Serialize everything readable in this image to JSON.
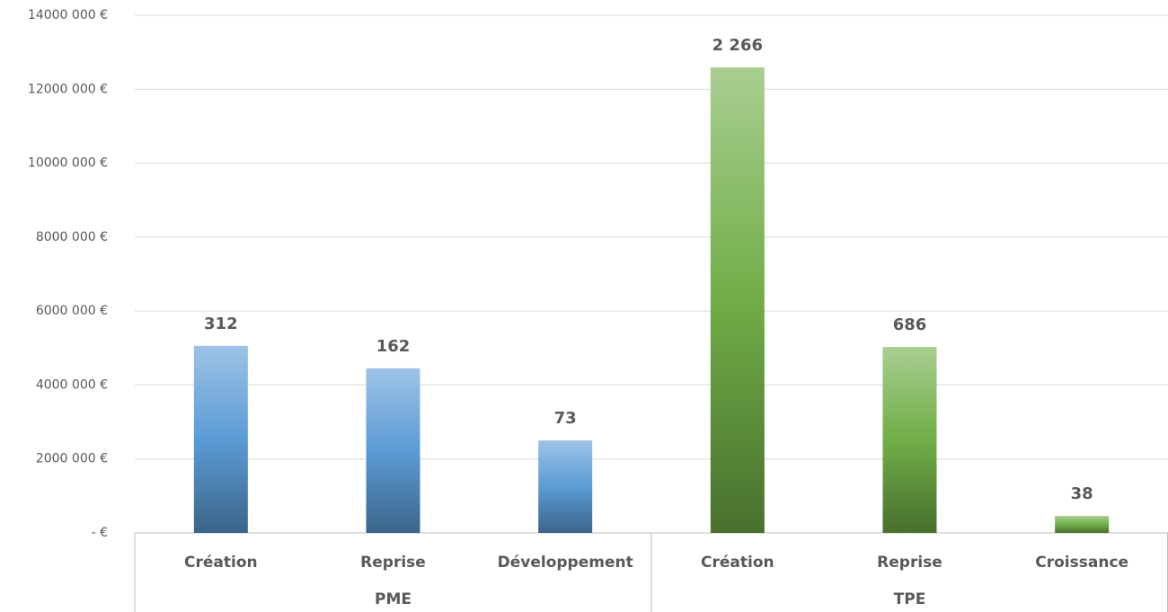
{
  "chart_data": {
    "type": "bar",
    "groups": [
      {
        "name": "PME",
        "color": "#5b9bd5",
        "categories": [
          "Création",
          "Reprise",
          "Développement"
        ],
        "values": [
          5060000,
          4450000,
          2500000
        ],
        "count_labels": [
          "312",
          "162",
          "73"
        ]
      },
      {
        "name": "TPE",
        "color": "#70ad47",
        "categories": [
          "Création",
          "Reprise",
          "Croissance"
        ],
        "values": [
          12590000,
          5030000,
          460000
        ],
        "count_labels": [
          "2 266",
          "686",
          "38"
        ]
      }
    ],
    "ylim": [
      0,
      14000000
    ],
    "yticks": [
      {
        "value": 0,
        "label": "-   €"
      },
      {
        "value": 2000000,
        "label": "2000 000 €"
      },
      {
        "value": 4000000,
        "label": "4000 000 €"
      },
      {
        "value": 6000000,
        "label": "6000 000 €"
      },
      {
        "value": 8000000,
        "label": "8000 000 €"
      },
      {
        "value": 10000000,
        "label": "10000 000 €"
      },
      {
        "value": 12000000,
        "label": "12000 000 €"
      },
      {
        "value": 14000000,
        "label": "14000 000 €"
      }
    ],
    "grid": true
  }
}
